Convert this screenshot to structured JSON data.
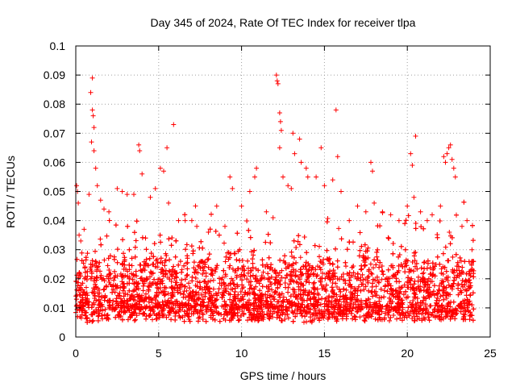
{
  "chart_data": {
    "type": "scatter",
    "title": "Day 345 of 2024, Rate Of TEC Index for receiver tlpa",
    "xlabel": "GPS time / hours",
    "ylabel": "ROTI / TECUs",
    "xlim": [
      0,
      25
    ],
    "ylim": [
      0,
      0.1
    ],
    "x_ticks": [
      0,
      5,
      10,
      15,
      20,
      25
    ],
    "x_tick_labels": [
      "0",
      "5",
      "10",
      "15",
      "20",
      "25"
    ],
    "y_ticks": [
      0,
      0.01,
      0.02,
      0.03,
      0.04,
      0.05,
      0.06,
      0.07,
      0.08,
      0.09,
      0.1
    ],
    "y_tick_labels": [
      "0",
      "0.01",
      "0.02",
      "0.03",
      "0.04",
      "0.05",
      "0.06",
      "0.07",
      "0.08",
      "0.09",
      "0.1"
    ],
    "grid": true,
    "marker": "+",
    "marker_color": "#ff0000",
    "data_x_range": [
      0,
      24
    ],
    "series": [
      {
        "name": "ROTI",
        "points": [
          [
            0.05,
            0.052
          ],
          [
            0.1,
            0.05
          ],
          [
            0.15,
            0.046
          ],
          [
            0.2,
            0.035
          ],
          [
            0.3,
            0.033
          ],
          [
            0.5,
            0.037
          ],
          [
            0.8,
            0.049
          ],
          [
            0.9,
            0.084
          ],
          [
            1.0,
            0.089
          ],
          [
            1.0,
            0.078
          ],
          [
            1.05,
            0.076
          ],
          [
            1.1,
            0.072
          ],
          [
            0.95,
            0.067
          ],
          [
            1.1,
            0.064
          ],
          [
            1.2,
            0.058
          ],
          [
            1.3,
            0.052
          ],
          [
            1.5,
            0.047
          ],
          [
            1.7,
            0.044
          ],
          [
            2.0,
            0.043
          ],
          [
            2.5,
            0.051
          ],
          [
            2.8,
            0.05
          ],
          [
            3.1,
            0.049
          ],
          [
            3.5,
            0.049
          ],
          [
            3.8,
            0.066
          ],
          [
            3.85,
            0.064
          ],
          [
            4.0,
            0.056
          ],
          [
            4.5,
            0.048
          ],
          [
            4.8,
            0.051
          ],
          [
            5.1,
            0.058
          ],
          [
            5.3,
            0.057
          ],
          [
            5.5,
            0.065
          ],
          [
            5.6,
            0.046
          ],
          [
            5.9,
            0.073
          ],
          [
            6.2,
            0.04
          ],
          [
            6.6,
            0.04
          ],
          [
            7.0,
            0.04
          ],
          [
            7.3,
            0.038
          ],
          [
            8.0,
            0.036
          ],
          [
            8.5,
            0.045
          ],
          [
            9.0,
            0.038
          ],
          [
            9.3,
            0.055
          ],
          [
            9.45,
            0.051
          ],
          [
            10.0,
            0.045
          ],
          [
            10.5,
            0.05
          ],
          [
            10.8,
            0.055
          ],
          [
            10.9,
            0.058
          ],
          [
            11.5,
            0.043
          ],
          [
            11.9,
            0.041
          ],
          [
            12.1,
            0.09
          ],
          [
            12.15,
            0.088
          ],
          [
            12.2,
            0.087
          ],
          [
            12.3,
            0.077
          ],
          [
            12.35,
            0.074
          ],
          [
            12.4,
            0.071
          ],
          [
            12.3,
            0.065
          ],
          [
            12.5,
            0.055
          ],
          [
            12.8,
            0.052
          ],
          [
            13.0,
            0.051
          ],
          [
            13.1,
            0.07
          ],
          [
            13.2,
            0.063
          ],
          [
            13.5,
            0.068
          ],
          [
            13.6,
            0.06
          ],
          [
            13.9,
            0.058
          ],
          [
            14.0,
            0.055
          ],
          [
            14.5,
            0.055
          ],
          [
            14.8,
            0.065
          ],
          [
            15.0,
            0.052
          ],
          [
            15.5,
            0.054
          ],
          [
            15.7,
            0.078
          ],
          [
            15.8,
            0.062
          ],
          [
            16.0,
            0.05
          ],
          [
            16.5,
            0.04
          ],
          [
            17.0,
            0.045
          ],
          [
            17.5,
            0.043
          ],
          [
            17.8,
            0.06
          ],
          [
            17.9,
            0.057
          ],
          [
            18.0,
            0.046
          ],
          [
            18.5,
            0.043
          ],
          [
            19.0,
            0.042
          ],
          [
            19.5,
            0.04
          ],
          [
            20.0,
            0.045
          ],
          [
            20.2,
            0.063
          ],
          [
            20.3,
            0.059
          ],
          [
            20.4,
            0.048
          ],
          [
            20.5,
            0.069
          ],
          [
            20.8,
            0.043
          ],
          [
            21.2,
            0.04
          ],
          [
            21.5,
            0.042
          ],
          [
            22.0,
            0.045
          ],
          [
            22.2,
            0.062
          ],
          [
            22.3,
            0.06
          ],
          [
            22.4,
            0.063
          ],
          [
            22.5,
            0.065
          ],
          [
            22.6,
            0.066
          ],
          [
            22.7,
            0.061
          ],
          [
            22.8,
            0.058
          ],
          [
            22.9,
            0.055
          ],
          [
            23.3,
            0.038
          ],
          [
            23.6,
            0.04
          ],
          [
            23.9,
            0.03
          ]
        ]
      }
    ]
  }
}
